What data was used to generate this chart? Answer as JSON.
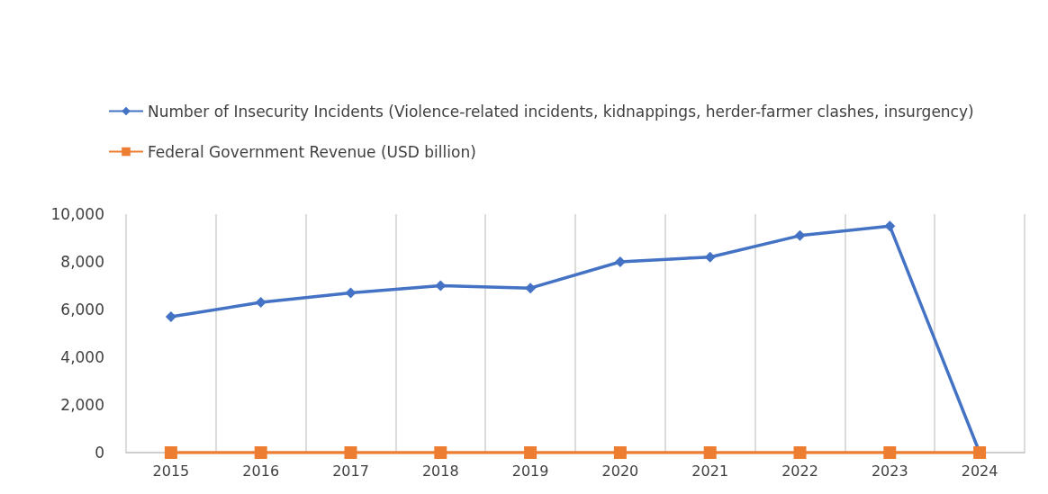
{
  "chart_data": {
    "type": "line",
    "categories": [
      "2015",
      "2016",
      "2017",
      "2018",
      "2019",
      "2020",
      "2021",
      "2022",
      "2023",
      "2024"
    ],
    "series": [
      {
        "name": "Number of Insecurity Incidents (Violence-related incidents, kidnappings, herder-farmer clashes, insurgency)",
        "color": "#4472c4",
        "marker": "diamond",
        "values": [
          5700,
          6300,
          6700,
          7000,
          6900,
          8000,
          8200,
          9100,
          9500,
          0
        ]
      },
      {
        "name": "Federal Government Revenue (USD billion)",
        "color": "#ed7d31",
        "marker": "square",
        "values": [
          0,
          0,
          0,
          0,
          0,
          0,
          0,
          0,
          0,
          0
        ]
      }
    ],
    "ylim": [
      0,
      10000
    ],
    "yticks": [
      0,
      {
        "value": 2000,
        "label": "2,000"
      },
      {
        "value": 4000,
        "label": "4,000"
      },
      {
        "value": 6000,
        "label": "6,000"
      },
      {
        "value": 8000,
        "label": "8,000"
      },
      {
        "value": 10000,
        "label": "10,000"
      }
    ],
    "grid": "x",
    "legend": "top"
  }
}
